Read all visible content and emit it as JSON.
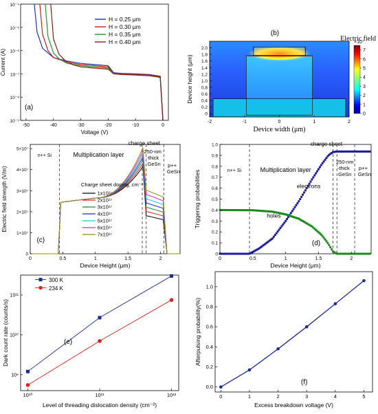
{
  "chart_data": [
    {
      "panel": "(a)",
      "type": "line",
      "xlabel": "Voltage (V)",
      "ylabel": "Current (A)",
      "xlim": [
        -52,
        2
      ],
      "ylim_log10": [
        -9,
        -4
      ],
      "x_ticks": [
        "-50",
        "-40",
        "-30",
        "-20",
        "-10",
        "0"
      ],
      "y_ticks": [
        "10⁻⁹",
        "10⁻⁸",
        "10⁻⁷",
        "10⁻⁶",
        "10⁻⁵",
        "10⁻⁴"
      ],
      "legend": "top-right",
      "series": [
        {
          "name": "H = 0.25 μm",
          "color": "#1f2fbf",
          "x": [
            -47,
            -46,
            -44,
            -40,
            -35,
            -30,
            -25,
            -20,
            -18,
            -15,
            -10,
            -5,
            -1,
            -0.5,
            0
          ],
          "y_log10": [
            -4,
            -5.2,
            -5.9,
            -6.3,
            -6.45,
            -6.55,
            -6.6,
            -6.65,
            -6.95,
            -6.98,
            -7.0,
            -7.03,
            -7.1,
            -8.0,
            -9
          ]
        },
        {
          "name": "H = 0.30 μm",
          "color": "#d11b1b",
          "x": [
            -45,
            -44,
            -42,
            -40,
            -35,
            -30,
            -25,
            -20,
            -18,
            -15,
            -10,
            -5,
            -1,
            -0.5,
            0
          ],
          "y_log10": [
            -4,
            -5.3,
            -6.0,
            -6.3,
            -6.5,
            -6.6,
            -6.65,
            -6.7,
            -6.97,
            -7.0,
            -7.02,
            -7.05,
            -7.12,
            -8.0,
            -9
          ]
        },
        {
          "name": "H = 0.35 μm",
          "color": "#1d9a1d",
          "x": [
            -43,
            -42,
            -40,
            -38,
            -35,
            -30,
            -25,
            -20,
            -18,
            -15,
            -10,
            -5,
            -1,
            -0.5,
            0
          ],
          "y_log10": [
            -4,
            -5.4,
            -6.1,
            -6.35,
            -6.55,
            -6.65,
            -6.7,
            -6.75,
            -6.99,
            -7.02,
            -7.04,
            -7.07,
            -7.14,
            -8.0,
            -9
          ]
        },
        {
          "name": "H = 0.40 μm",
          "color": "#8b1a1a",
          "x": [
            -41,
            -40,
            -38,
            -36,
            -33,
            -30,
            -25,
            -20,
            -18,
            -15,
            -10,
            -5,
            -1,
            -0.5,
            0
          ],
          "y_log10": [
            -4,
            -5.5,
            -6.15,
            -6.4,
            -6.6,
            -6.7,
            -6.75,
            -6.8,
            -7.0,
            -7.03,
            -7.05,
            -7.08,
            -7.15,
            -8.0,
            -9
          ]
        }
      ]
    },
    {
      "panel": "(b)",
      "type": "heatmap",
      "title": "Electric field",
      "xlabel": "Device width (μm)",
      "ylabel": "Device height (μm)",
      "xlim": [
        -2,
        2
      ],
      "ylim": [
        -0.1,
        2.2
      ],
      "x_ticks": [
        "-2",
        "-1",
        "0",
        "1",
        "2"
      ],
      "y_ticks": [
        "0",
        "0.2",
        "0.4",
        "0.6",
        "0.8",
        "1.0",
        "1.2",
        "1.4",
        "1.6",
        "1.8",
        "2.0"
      ],
      "colorbar_ticks": [
        "0",
        "1",
        "2",
        "3",
        "4",
        "5",
        "6",
        "7"
      ],
      "colorbar_exponent": "×10⁷",
      "colorbar_max": 7.5
    },
    {
      "panel": "(c)",
      "type": "line",
      "xlabel": "Device Height (μm)",
      "ylabel": "Electric field strength (V/m)",
      "xlim": [
        0,
        2.3
      ],
      "ylim": [
        0,
        52000000.0
      ],
      "x_ticks": [
        "0",
        "0.5",
        "1",
        "1.5",
        "2"
      ],
      "y_ticks": [
        "0",
        "1×10⁷",
        "2×10⁷",
        "3×10⁷",
        "4×10⁷",
        "5×10⁷"
      ],
      "annotations": [
        "n++ Si",
        "Multiplication layer",
        "charge sheet",
        "250-nm",
        "-thick",
        "GeSn",
        "p++",
        "GeSn"
      ],
      "legend_title": "Charge sheet doping, cm⁻³",
      "legend": "center",
      "series": [
        {
          "name": "1x10¹⁷",
          "color": "#000000",
          "peak": 41500000.0,
          "gesn": 18000000.0
        },
        {
          "name": "2x10¹⁷",
          "color": "#e8201a",
          "peak": 43000000.0,
          "gesn": 20000000.0
        },
        {
          "name": "3x10¹⁷",
          "color": "#2f7d32",
          "peak": 44500000.0,
          "gesn": 22000000.0
        },
        {
          "name": "4x10¹⁷",
          "color": "#1c24c9",
          "peak": 46000000.0,
          "gesn": 24000000.0
        },
        {
          "name": "5x10¹⁷",
          "color": "#21c6c6",
          "peak": 47500000.0,
          "gesn": 26000000.0
        },
        {
          "name": "6x10¹⁷",
          "color": "#e41ee4",
          "peak": 49000000.0,
          "gesn": 28000000.0
        },
        {
          "name": "7x10¹⁷",
          "color": "#8e8e12",
          "peak": 50500000.0,
          "gesn": 30000000.0
        }
      ]
    },
    {
      "panel": "(d)",
      "type": "scatter",
      "xlabel": "Device Height (μm)",
      "ylabel": "Triggering probabilities",
      "xlim": [
        0,
        2.3
      ],
      "ylim": [
        0,
        1.0
      ],
      "x_ticks": [
        "0",
        "0.5",
        "1",
        "1.5",
        "2"
      ],
      "y_ticks": [
        "0",
        "0.1",
        "0.2",
        "0.3",
        "0.4",
        "0.5",
        "0.6",
        "0.7",
        "0.8",
        "0.9",
        "1.0"
      ],
      "annotations": [
        "n++ Si",
        "Multiplication layer",
        "charge sheet",
        "250-nm",
        "-thick",
        "GeSn",
        "p++",
        "GeSn"
      ],
      "series": [
        {
          "name": "electrons",
          "color": "#1c1c9c",
          "x": [
            0,
            0.45,
            0.6,
            0.8,
            1.0,
            1.2,
            1.4,
            1.55,
            1.65,
            1.72,
            1.78,
            2.3
          ],
          "y": [
            0,
            0,
            0.05,
            0.14,
            0.3,
            0.48,
            0.68,
            0.82,
            0.9,
            0.93,
            0.935,
            0.935
          ]
        },
        {
          "name": "holes",
          "color": "#1d8a1d",
          "x": [
            0,
            0.5,
            0.8,
            1.0,
            1.2,
            1.4,
            1.55,
            1.65,
            1.72,
            1.78,
            2.3
          ],
          "y": [
            0.4,
            0.398,
            0.385,
            0.36,
            0.32,
            0.25,
            0.17,
            0.09,
            0.02,
            0,
            0
          ]
        }
      ]
    },
    {
      "panel": "(e)",
      "type": "line",
      "xlabel": "Level of threading dislocation density (cm⁻²)",
      "ylabel": "Dark count rate (counts/s)",
      "xlim_log10": [
        9.9,
        12.1
      ],
      "ylim_log10": [
        8.6,
        11.5
      ],
      "x_ticks": [
        "10¹⁰",
        "10¹¹",
        "10¹²"
      ],
      "y_ticks": [
        "10⁹",
        "10¹⁰",
        "10¹¹"
      ],
      "legend": "top-left",
      "series": [
        {
          "name": "300 K",
          "color": "#1a2a9a",
          "x": [
            10000000000.0,
            100000000000.0,
            1000000000000.0
          ],
          "y": [
            1200000000.0,
            27000000000.0,
            300000000000.0
          ]
        },
        {
          "name": "234 K",
          "color": "#e61e1e",
          "x": [
            10000000000.0,
            100000000000.0,
            1000000000000.0
          ],
          "y": [
            550000000.0,
            7000000000.0,
            75000000000.0
          ]
        }
      ]
    },
    {
      "panel": "(f)",
      "type": "line",
      "xlabel": "Excess breakdown voltage (V)",
      "ylabel": "Afterpulsing probability(%)",
      "xlim": [
        -0.2,
        5.3
      ],
      "ylim": [
        -0.05,
        1.15
      ],
      "x_ticks": [
        "0",
        "1",
        "2",
        "3",
        "4",
        "5"
      ],
      "y_ticks": [
        "0.0",
        "0.2",
        "0.4",
        "0.6",
        "0.8",
        "1.0"
      ],
      "series": [
        {
          "color": "#1a2a9a",
          "x": [
            0,
            1,
            2,
            3,
            4,
            5
          ],
          "y": [
            0,
            0.17,
            0.38,
            0.6,
            0.83,
            1.06
          ]
        }
      ]
    }
  ]
}
